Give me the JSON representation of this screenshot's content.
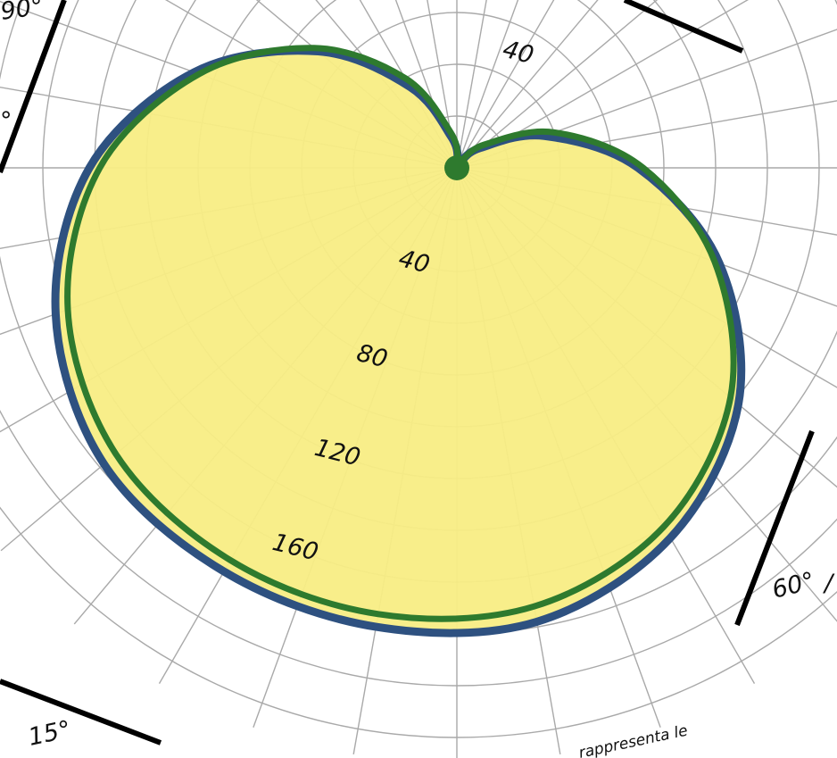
{
  "chart_data": {
    "type": "polar-area",
    "radial_ticks": [
      "40",
      "80",
      "120",
      "160"
    ],
    "angular_ticks": [
      "90°",
      "60°",
      "15°"
    ],
    "angular_tick_partials": [
      "°",
      "/"
    ],
    "radial_range": [
      0,
      180
    ],
    "angles_deg": [
      0,
      20,
      40,
      60,
      80,
      100,
      120,
      140,
      160,
      180,
      200,
      220,
      240,
      260,
      280,
      300,
      320,
      340
    ],
    "series": [
      {
        "style": "filled",
        "fill_color": "#f8ed84",
        "stroke_color": "#2e5180",
        "values": [
          180,
          178,
          165,
          142,
          108,
          70,
          36,
          12,
          3,
          3,
          12,
          36,
          70,
          108,
          142,
          165,
          178,
          180
        ]
      },
      {
        "style": "line",
        "stroke_color": "#2e7a2e",
        "values": [
          175,
          172,
          160,
          138,
          106,
          72,
          40,
          14,
          3,
          3,
          14,
          40,
          72,
          106,
          138,
          160,
          172,
          175
        ]
      }
    ],
    "annotation": "rappresenta le",
    "grid": true
  }
}
